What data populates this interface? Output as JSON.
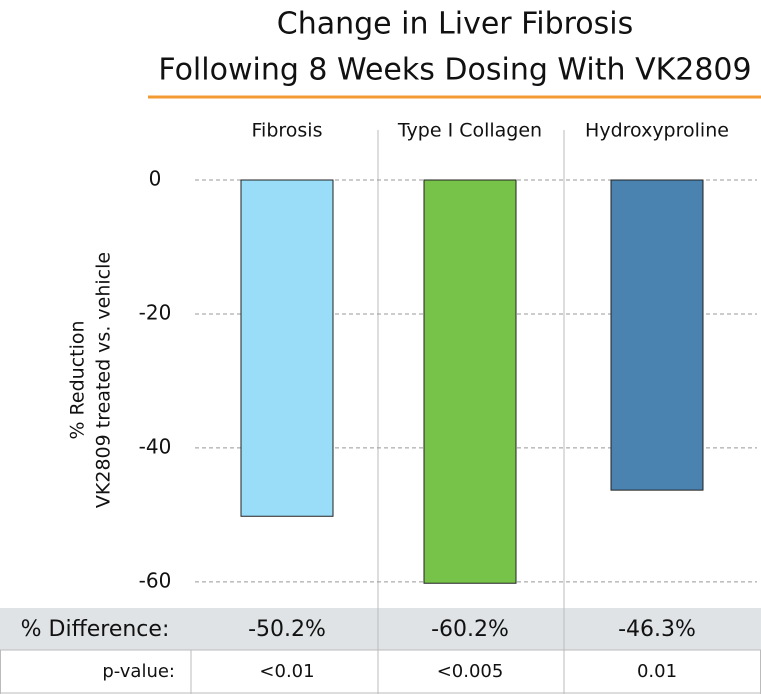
{
  "chart_data": {
    "type": "bar",
    "title": [
      "Change in Liver Fibrosis",
      "Following 8 Weeks Dosing With VK2809"
    ],
    "y_label": [
      "% Reduction",
      "VK2809 treated vs. vehicle"
    ],
    "categories": [
      "Fibrosis",
      "Type I Collagen",
      "Hydroxyproline"
    ],
    "values": [
      -50.2,
      -60.2,
      -46.3
    ],
    "value_labels": [
      "-50.2%",
      "-60.2%",
      "-46.3%"
    ],
    "colors": [
      "#99ddf8",
      "#77c34a",
      "#4a83b0"
    ],
    "ylim": [
      -63,
      0
    ],
    "yticks": [
      0,
      -20,
      -40,
      -60
    ],
    "grid": true,
    "row_labels": [
      "% Difference:",
      "p-value:"
    ],
    "p_values": [
      "<0.01",
      "<0.005",
      "0.01"
    ]
  }
}
